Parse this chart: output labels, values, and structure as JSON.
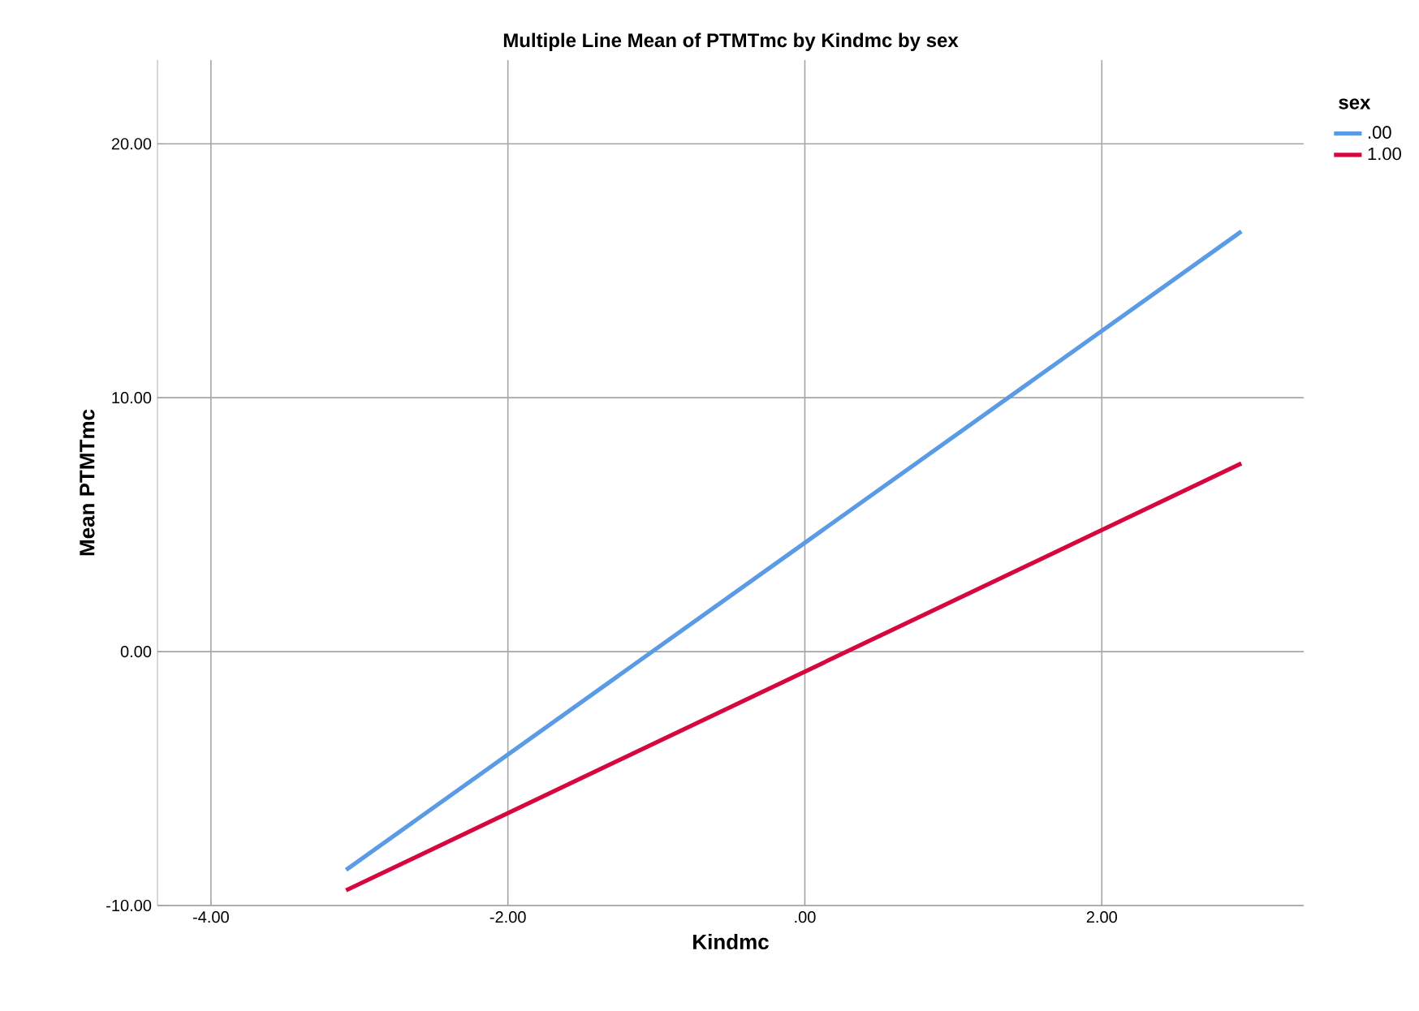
{
  "chart_data": {
    "type": "line",
    "title": "Multiple Line Mean of PTMTmc by Kindmc by sex",
    "xlabel": "Kindmc",
    "ylabel": "Mean PTMTmc",
    "legend_title": "sex",
    "xlim": [
      -4.36,
      3.36
    ],
    "ylim": [
      -10,
      23.3
    ],
    "xticks": [
      {
        "value": -4,
        "label": "-4.00"
      },
      {
        "value": -2,
        "label": "-2.00"
      },
      {
        "value": 0,
        "label": ".00"
      },
      {
        "value": 2,
        "label": "2.00"
      }
    ],
    "yticks": [
      {
        "value": -10,
        "label": "-10.00"
      },
      {
        "value": 0,
        "label": "0.00"
      },
      {
        "value": 10,
        "label": "10.00"
      },
      {
        "value": 20,
        "label": "20.00"
      }
    ],
    "grid": true,
    "legend": "top right",
    "marker": "none",
    "line_style": "solid",
    "x": [
      -3.09,
      2.94
    ],
    "series": [
      {
        "name": ".00",
        "color": "#5b9be6",
        "values": [
          -8.6,
          16.55
        ]
      },
      {
        "name": "1.00",
        "color": "#d6063e",
        "values": [
          -9.4,
          7.41
        ]
      }
    ]
  }
}
